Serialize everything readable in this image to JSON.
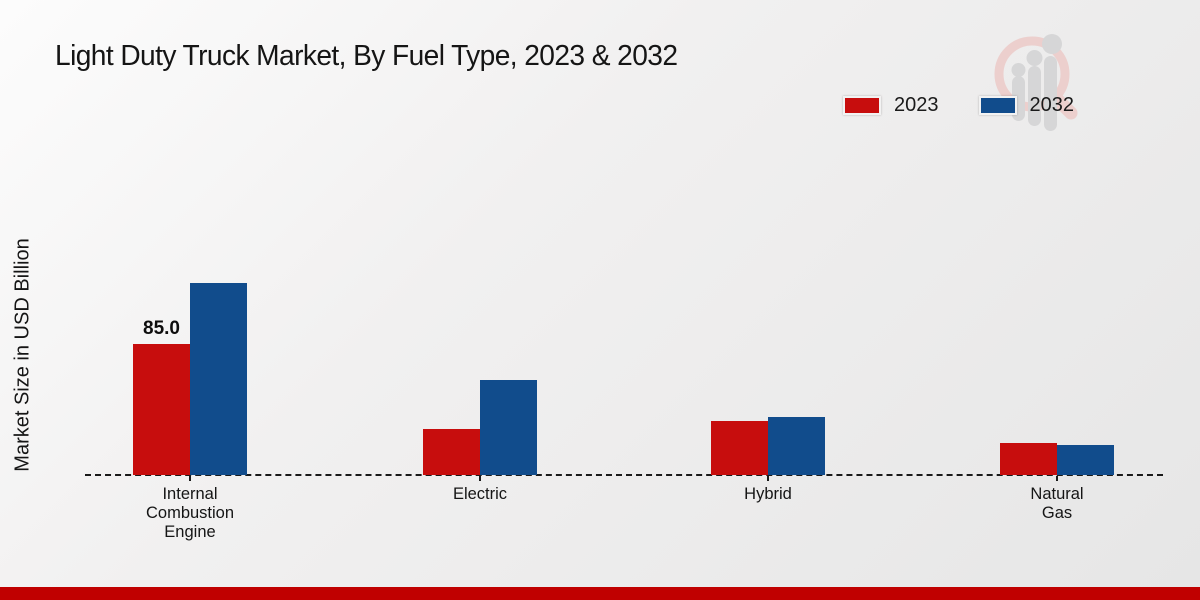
{
  "title": "Light Duty Truck Market, By Fuel Type, 2023 & 2032",
  "y_axis_label": "Market Size in USD Billion",
  "legend": {
    "items": [
      {
        "label": "2023",
        "color": "#c70d0d"
      },
      {
        "label": "2032",
        "color": "#114c8c"
      }
    ]
  },
  "colors": {
    "series_2023": "#c70d0d",
    "series_2032": "#114c8c",
    "bottom_band": "#c00000",
    "axis": "#1a1a1a"
  },
  "chart_data": {
    "type": "bar",
    "title": "Light Duty Truck Market, By Fuel Type, 2023 & 2032",
    "ylabel": "Market Size in USD Billion",
    "xlabel": "",
    "categories": [
      "Internal\nCombustion\nEngine",
      "Electric",
      "Hybrid",
      "Natural\nGas"
    ],
    "series": [
      {
        "name": "2023",
        "color": "#c70d0d",
        "values": [
          85.0,
          30,
          35,
          20.5
        ],
        "shown_labels": [
          "85.0",
          null,
          null,
          null
        ]
      },
      {
        "name": "2032",
        "color": "#114c8c",
        "values": [
          125,
          62,
          38,
          19.5
        ],
        "shown_labels": [
          null,
          null,
          null,
          null
        ]
      }
    ],
    "ylim": [
      0,
      205
    ],
    "grid": false,
    "legend_position": "top-right",
    "baseline_style": "dashed"
  }
}
